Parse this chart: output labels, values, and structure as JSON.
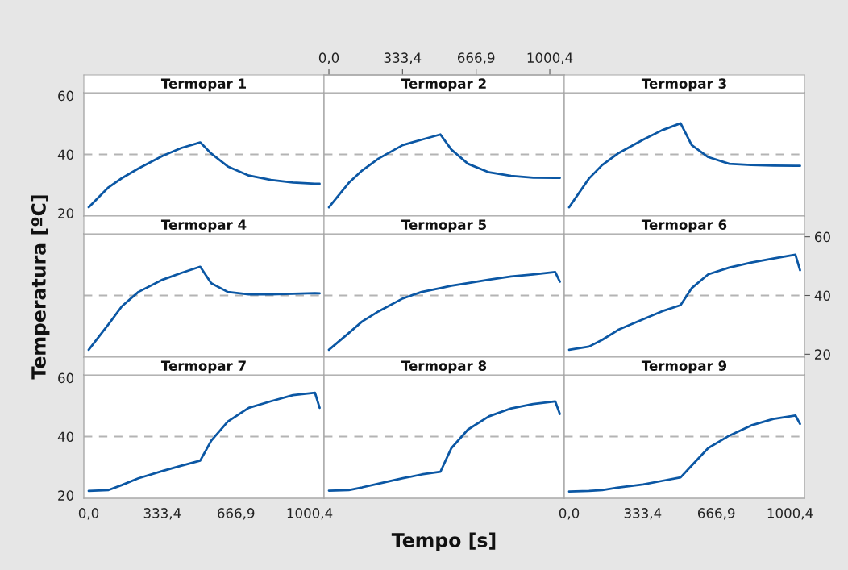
{
  "chart_data": [
    {
      "type": "line",
      "title": "Termopar 1",
      "x": [
        0,
        90,
        150,
        225,
        335,
        420,
        505,
        555,
        630,
        725,
        825,
        925,
        1025,
        1046
      ],
      "series": [
        {
          "color": "#0b57a4",
          "values": [
            22.0,
            28.8,
            31.9,
            35.2,
            39.5,
            42.2,
            44.1,
            40.3,
            35.9,
            32.8,
            31.3,
            30.4,
            30.0,
            30.0
          ]
        }
      ],
      "xlim": [
        -22,
        1066
      ],
      "ylim": [
        19,
        61
      ],
      "yticks": [
        20,
        40,
        60
      ],
      "tick_labels": "y",
      "ref_lines": [
        {
          "axis": "y",
          "value": 40,
          "color": "#b4b4b4",
          "line_style": "dashed"
        }
      ]
    },
    {
      "type": "line",
      "title": "Termopar 2",
      "x": [
        0,
        90,
        150,
        225,
        335,
        420,
        505,
        555,
        630,
        725,
        825,
        925,
        1025,
        1046
      ],
      "series": [
        {
          "color": "#0b57a4",
          "values": [
            22.0,
            30.3,
            34.5,
            38.6,
            43.2,
            45.0,
            46.8,
            41.6,
            36.8,
            33.9,
            32.7,
            32.1,
            32.0,
            32.0
          ]
        }
      ],
      "xlim": [
        -22,
        1066
      ],
      "ylim": [
        19,
        61
      ],
      "x2lim": [
        -22,
        1066
      ],
      "x2ticks": [
        {
          "value": 0,
          "label": "0,0"
        },
        {
          "value": 333.4,
          "label": "333,4"
        },
        {
          "value": 666.9,
          "label": "666,9"
        },
        {
          "value": 1000.4,
          "label": "1000,4"
        }
      ],
      "tick_labels": false,
      "ref_lines": [
        {
          "axis": "y",
          "value": 40,
          "color": "#b4b4b4",
          "line_style": "dashed"
        }
      ]
    },
    {
      "type": "line",
      "title": "Termopar 3",
      "x": [
        0,
        90,
        150,
        225,
        335,
        420,
        505,
        555,
        630,
        725,
        825,
        925,
        1025,
        1046
      ],
      "series": [
        {
          "color": "#0b57a4",
          "values": [
            22.0,
            31.8,
            36.4,
            40.5,
            45.0,
            48.2,
            50.6,
            43.2,
            39.1,
            36.8,
            36.4,
            36.2,
            36.1,
            36.1
          ]
        }
      ],
      "xlim": [
        -22,
        1066
      ],
      "ylim": [
        19,
        61
      ],
      "tick_labels": false,
      "ref_lines": [
        {
          "axis": "y",
          "value": 40,
          "color": "#b4b4b4",
          "line_style": "dashed"
        }
      ]
    },
    {
      "type": "line",
      "title": "Termopar 4",
      "ylabel": "Temperatura [ºC]",
      "x": [
        0,
        90,
        150,
        225,
        335,
        420,
        505,
        555,
        630,
        725,
        825,
        925,
        1025,
        1046
      ],
      "series": [
        {
          "color": "#0b57a4",
          "values": [
            21.5,
            30.2,
            36.3,
            41.2,
            45.4,
            47.7,
            49.8,
            44.2,
            41.2,
            40.4,
            40.4,
            40.6,
            40.8,
            40.7
          ]
        }
      ],
      "xlim": [
        -22,
        1066
      ],
      "ylim": [
        19,
        61
      ],
      "tick_labels": false,
      "ref_lines": [
        {
          "axis": "y",
          "value": 40,
          "color": "#b4b4b4",
          "line_style": "dashed"
        }
      ]
    },
    {
      "type": "line",
      "title": "Termopar 5",
      "x": [
        0,
        90,
        150,
        225,
        335,
        420,
        505,
        555,
        630,
        725,
        825,
        925,
        1025,
        1046
      ],
      "series": [
        {
          "color": "#0b57a4",
          "values": [
            21.5,
            27.2,
            31.1,
            34.6,
            39.0,
            41.2,
            42.5,
            43.3,
            44.2,
            45.4,
            46.5,
            47.2,
            48.0,
            44.7
          ]
        }
      ],
      "xlim": [
        -22,
        1066
      ],
      "ylim": [
        19,
        61
      ],
      "tick_labels": false,
      "ref_lines": [
        {
          "axis": "y",
          "value": 40,
          "color": "#b4b4b4",
          "line_style": "dashed"
        }
      ]
    },
    {
      "type": "line",
      "title": "Termopar 6",
      "x": [
        0,
        90,
        150,
        225,
        335,
        420,
        505,
        555,
        630,
        725,
        825,
        925,
        1025,
        1046
      ],
      "series": [
        {
          "color": "#0b57a4",
          "values": [
            21.5,
            22.6,
            24.9,
            28.4,
            31.9,
            34.6,
            36.7,
            42.5,
            47.2,
            49.5,
            51.2,
            52.6,
            53.9,
            48.6
          ]
        }
      ],
      "xlim": [
        -22,
        1066
      ],
      "ylim": [
        19,
        61
      ],
      "yticks": [
        20,
        40,
        60
      ],
      "tick_labels": "y",
      "ref_lines": [
        {
          "axis": "y",
          "value": 40,
          "color": "#b4b4b4",
          "line_style": "dashed"
        }
      ]
    },
    {
      "type": "line",
      "title": "Termopar 7",
      "x": [
        0,
        90,
        150,
        225,
        335,
        420,
        505,
        555,
        630,
        725,
        825,
        925,
        1025,
        1046
      ],
      "series": [
        {
          "color": "#0b57a4",
          "values": [
            21.5,
            21.8,
            23.5,
            25.8,
            28.3,
            30.1,
            31.8,
            38.6,
            45.1,
            49.8,
            52.0,
            54.1,
            54.9,
            49.8
          ]
        }
      ],
      "xlim": [
        -22,
        1066
      ],
      "ylim": [
        19,
        61
      ],
      "xticks": [
        {
          "value": 0,
          "label": "0,0"
        },
        {
          "value": 333.4,
          "label": "333,4"
        },
        {
          "value": 666.9,
          "label": "666,9"
        },
        {
          "value": 1000.4,
          "label": "1000,4"
        }
      ],
      "yticks": [
        20,
        40,
        60
      ],
      "ref_lines": [
        {
          "axis": "y",
          "value": 40,
          "color": "#b4b4b4",
          "line_style": "dashed"
        }
      ]
    },
    {
      "type": "line",
      "title": "Termopar 8",
      "xlabel": "Tempo [s]",
      "x": [
        0,
        90,
        150,
        225,
        335,
        420,
        505,
        555,
        630,
        725,
        825,
        925,
        1025,
        1046
      ],
      "series": [
        {
          "color": "#0b57a4",
          "values": [
            21.6,
            21.8,
            22.7,
            24.0,
            25.8,
            27.1,
            28.0,
            36.1,
            42.4,
            46.9,
            49.6,
            51.1,
            52.0,
            47.7
          ]
        }
      ],
      "xlim": [
        -22,
        1066
      ],
      "ylim": [
        19,
        61
      ],
      "tick_labels": false,
      "ref_lines": [
        {
          "axis": "y",
          "value": 40,
          "color": "#b4b4b4",
          "line_style": "dashed"
        }
      ]
    },
    {
      "type": "line",
      "title": "Termopar 9",
      "x": [
        0,
        90,
        150,
        225,
        335,
        420,
        505,
        555,
        630,
        725,
        825,
        925,
        1025,
        1046
      ],
      "series": [
        {
          "color": "#0b57a4",
          "values": [
            21.3,
            21.5,
            21.8,
            22.7,
            23.7,
            24.9,
            26.1,
            30.1,
            36.1,
            40.3,
            43.8,
            46.0,
            47.2,
            44.3
          ]
        }
      ],
      "xlim": [
        -22,
        1066
      ],
      "ylim": [
        19,
        61
      ],
      "xticks": [
        {
          "value": 0,
          "label": "0,0"
        },
        {
          "value": 333.4,
          "label": "333,4"
        },
        {
          "value": 666.9,
          "label": "666,9"
        },
        {
          "value": 1000.4,
          "label": "1000,4"
        }
      ],
      "tick_labels": "x",
      "ref_lines": [
        {
          "axis": "y",
          "value": 40,
          "color": "#b4b4b4",
          "line_style": "dashed"
        }
      ]
    }
  ]
}
